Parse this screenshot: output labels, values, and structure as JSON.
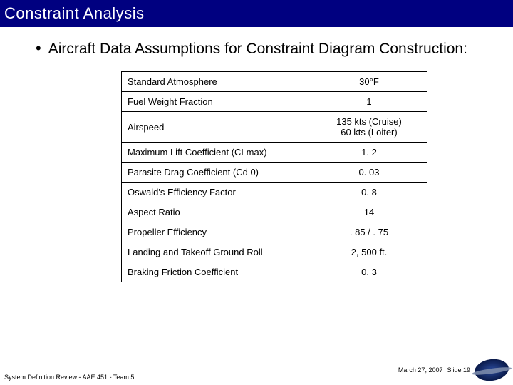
{
  "title": "Constraint Analysis",
  "bullet": "Aircraft Data Assumptions for Constraint Diagram Construction:",
  "table": {
    "columns": [
      "label",
      "value"
    ],
    "col_align": [
      "left",
      "center"
    ],
    "col_widths_pct": [
      62,
      38
    ],
    "border_color": "#000000",
    "font_size_pt": 13,
    "rows": [
      [
        "Standard Atmosphere",
        "30°F"
      ],
      [
        "Fuel Weight Fraction",
        "1"
      ],
      [
        "Airspeed",
        "135 kts (Cruise)\n60 kts (Loiter)"
      ],
      [
        "Maximum Lift Coefficient (CLmax)",
        "1. 2"
      ],
      [
        "Parasite Drag Coefficient (Cd 0)",
        "0. 03"
      ],
      [
        "Oswald's Efficiency Factor",
        "0. 8"
      ],
      [
        "Aspect Ratio",
        "14"
      ],
      [
        "Propeller Efficiency",
        ". 85 / . 75"
      ],
      [
        "Landing and Takeoff Ground Roll",
        "2, 500 ft."
      ],
      [
        "Braking Friction Coefficient",
        "0. 3"
      ]
    ]
  },
  "footer": {
    "left": "System Definition Review - AAE 451 - Team 5",
    "date": "March 27, 2007",
    "slide_label": "Slide 19"
  },
  "colors": {
    "title_bg": "#000080",
    "title_fg": "#ffffff",
    "body_text": "#000000",
    "slide_bg": "#ffffff"
  }
}
